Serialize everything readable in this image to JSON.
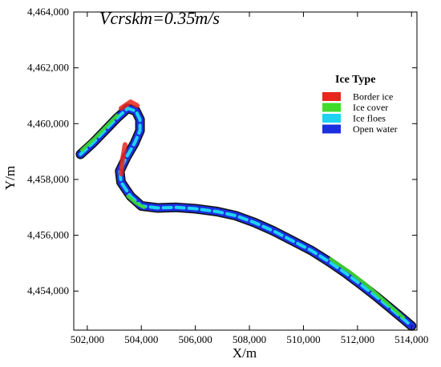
{
  "chart_data": {
    "type": "map",
    "annotation": "Vcrskm=0.35m/s",
    "xlabel": "X/m",
    "ylabel": "Y/m",
    "xlim": [
      501500,
      514200
    ],
    "ylim": [
      4452600,
      4464000
    ],
    "xticks": [
      502000,
      504000,
      506000,
      508000,
      510000,
      512000,
      514000
    ],
    "xtick_labels": [
      "502,000",
      "504,000",
      "506,000",
      "508,000",
      "510,000",
      "512,000",
      "514,000"
    ],
    "yticks": [
      4454000,
      4456000,
      4458000,
      4460000,
      4462000,
      4464000
    ],
    "ytick_labels": [
      "4,454,000",
      "4,456,000",
      "4,458,000",
      "4,460,000",
      "4,462,000",
      "4,464,000"
    ],
    "legend": {
      "title": "Ice Type",
      "position": "top-right",
      "entries": [
        {
          "label": "Border ice",
          "color": "#e8261c"
        },
        {
          "label": "Ice cover",
          "color": "#3fdc2a"
        },
        {
          "label": "Ice floes",
          "color": "#1fd3f0"
        },
        {
          "label": "Open water",
          "color": "#1b2fe0"
        }
      ]
    },
    "river_centerline": [
      [
        501750,
        4458900
      ],
      [
        502200,
        4459300
      ],
      [
        502700,
        4459800
      ],
      [
        503100,
        4460200
      ],
      [
        503500,
        4460550
      ],
      [
        503800,
        4460450
      ],
      [
        503950,
        4460150
      ],
      [
        503950,
        4459750
      ],
      [
        503750,
        4459300
      ],
      [
        503450,
        4458800
      ],
      [
        503200,
        4458300
      ],
      [
        503250,
        4457900
      ],
      [
        503600,
        4457400
      ],
      [
        504000,
        4457050
      ],
      [
        504600,
        4456980
      ],
      [
        505300,
        4457000
      ],
      [
        506000,
        4456950
      ],
      [
        506800,
        4456850
      ],
      [
        507500,
        4456700
      ],
      [
        508200,
        4456450
      ],
      [
        508900,
        4456150
      ],
      [
        509600,
        4455800
      ],
      [
        510300,
        4455450
      ],
      [
        510950,
        4455050
      ],
      [
        511550,
        4454650
      ],
      [
        512100,
        4454250
      ],
      [
        512700,
        4453800
      ],
      [
        513200,
        4453400
      ],
      [
        513700,
        4453000
      ],
      [
        514000,
        4452750
      ]
    ],
    "border_ice_segments": [
      [
        [
          503250,
          4460550
        ],
        [
          503600,
          4460780
        ],
        [
          503850,
          4460650
        ]
      ],
      [
        [
          503400,
          4459250
        ],
        [
          503300,
          4458700
        ],
        [
          503250,
          4458200
        ]
      ]
    ],
    "ice_cover_segments": [
      [
        [
          501800,
          4459050
        ],
        [
          502300,
          4459500
        ],
        [
          502800,
          4460000
        ],
        [
          503100,
          4460300
        ]
      ],
      [
        [
          503500,
          4457400
        ],
        [
          503800,
          4457150
        ],
        [
          504100,
          4457000
        ]
      ],
      [
        [
          511000,
          4455150
        ],
        [
          511700,
          4454700
        ],
        [
          512300,
          4454250
        ],
        [
          513000,
          4453650
        ],
        [
          513700,
          4453050
        ]
      ]
    ]
  }
}
